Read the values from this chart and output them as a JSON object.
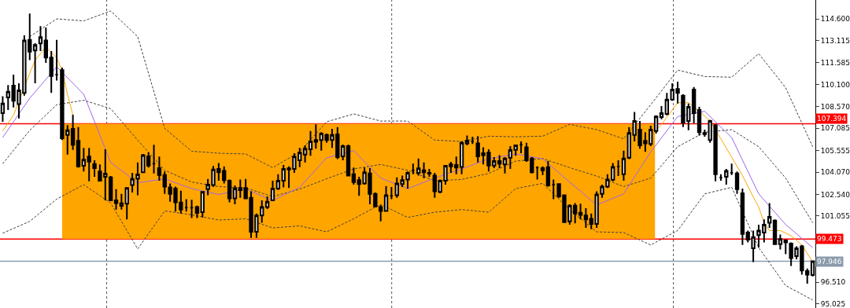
{
  "chart_data": {
    "type": "candlestick",
    "categories": [
      null,
      null,
      null,
      null,
      null,
      null,
      null,
      null,
      null,
      null,
      null,
      null,
      null,
      null,
      null,
      null,
      null,
      null,
      null,
      null,
      null,
      null,
      null,
      null,
      null,
      null,
      null,
      null,
      null,
      null,
      null,
      null,
      null,
      null,
      null,
      null,
      null,
      null,
      null,
      null,
      null,
      null,
      null,
      null,
      null,
      null,
      null,
      null,
      null,
      null,
      null,
      null,
      null,
      null,
      null,
      null,
      null,
      null,
      null,
      null,
      null,
      null,
      null,
      null,
      null,
      null,
      null,
      null,
      null,
      null,
      null,
      null,
      null,
      null,
      null,
      null,
      null,
      null,
      null,
      null,
      null,
      null,
      null,
      null,
      null,
      null,
      null,
      null,
      null,
      null,
      null,
      null,
      null,
      null,
      null,
      null,
      null,
      null,
      null,
      null,
      null,
      null,
      null,
      null,
      null,
      null,
      null,
      null,
      null,
      null,
      null,
      null,
      null,
      null,
      null,
      null,
      null,
      null,
      null,
      null,
      null,
      null,
      null,
      null,
      null,
      null,
      null,
      null,
      null,
      null,
      null,
      null,
      null,
      null,
      null,
      null,
      null,
      null,
      null,
      null,
      null,
      null,
      null,
      null,
      null,
      null,
      null,
      null,
      null,
      null,
      null
    ],
    "ohlc": [
      [
        108.12,
        109.28,
        107.53,
        108.79
      ],
      [
        109.2,
        110.05,
        108.34,
        109.6
      ],
      [
        110.01,
        110.77,
        108.52,
        108.97
      ],
      [
        108.74,
        110.18,
        107.76,
        109.69
      ],
      [
        109.51,
        113.47,
        109.33,
        113.11
      ],
      [
        113.16,
        114.96,
        111.76,
        112.34
      ],
      [
        112.43,
        112.93,
        110.18,
        112.8
      ],
      [
        112.91,
        114.1,
        112.39,
        113.34
      ],
      [
        113.11,
        114.01,
        111.58,
        111.94
      ],
      [
        111.94,
        112.39,
        109.51,
        110.68
      ],
      [
        110.77,
        113.16,
        110.36,
        110.77
      ],
      [
        111.08,
        111.26,
        106.27,
        106.4
      ],
      [
        106.63,
        107.3,
        105.28,
        106.95
      ],
      [
        107.04,
        108.02,
        105.6,
        105.95
      ],
      [
        106.22,
        107.17,
        104.38,
        104.47
      ],
      [
        104.51,
        105.73,
        104.11,
        104.92
      ],
      [
        105.14,
        105.73,
        103.44,
        104.79
      ],
      [
        104.63,
        104.88,
        103.75,
        104.34
      ],
      [
        104.11,
        104.6,
        103.44,
        103.48
      ],
      [
        103.75,
        105.64,
        102.13,
        103.97
      ],
      [
        103.71,
        103.8,
        102.08,
        102.13
      ],
      [
        102.13,
        102.9,
        101.5,
        101.95
      ],
      [
        101.75,
        102.58,
        101.5,
        101.93
      ],
      [
        101.9,
        102.99,
        100.82,
        102.99
      ],
      [
        103.19,
        104.02,
        102.67,
        103.61
      ],
      [
        103.62,
        104.74,
        102.49,
        103.91
      ],
      [
        104.06,
        105.32,
        104.02,
        105.24
      ],
      [
        105.15,
        105.42,
        104.38,
        104.52
      ],
      [
        104.65,
        105.95,
        103.98,
        104.65
      ],
      [
        104.34,
        105.14,
        103.48,
        103.88
      ],
      [
        103.88,
        104.11,
        102.58,
        103.08
      ],
      [
        103.03,
        103.3,
        102.04,
        102.58
      ],
      [
        102.94,
        103.08,
        101.36,
        102.0
      ],
      [
        101.99,
        102.8,
        101.23,
        101.5
      ],
      [
        101.64,
        102.22,
        101.36,
        101.64
      ],
      [
        101.64,
        102.18,
        100.92,
        101.64
      ],
      [
        101.68,
        101.77,
        100.92,
        101.27
      ],
      [
        101.32,
        102.71,
        100.96,
        102.71
      ],
      [
        102.9,
        103.61,
        102.49,
        103.21
      ],
      [
        103.19,
        104.49,
        103.07,
        104.25
      ],
      [
        104.29,
        104.7,
        103.48,
        104.06
      ],
      [
        104.16,
        104.47,
        103.3,
        103.52
      ],
      [
        103.48,
        103.57,
        102.0,
        102.27
      ],
      [
        102.27,
        103.16,
        101.86,
        102.94
      ],
      [
        102.83,
        103.57,
        102.31,
        102.98
      ],
      [
        102.98,
        103.61,
        102.22,
        102.27
      ],
      [
        102.31,
        102.76,
        99.56,
        99.97
      ],
      [
        99.97,
        101.23,
        99.56,
        101.1
      ],
      [
        101.1,
        102.13,
        100.6,
        101.68
      ],
      [
        101.68,
        102.4,
        101.54,
        102.04
      ],
      [
        102.13,
        103.48,
        102.08,
        102.94
      ],
      [
        102.94,
        103.93,
        102.85,
        103.48
      ],
      [
        103.48,
        104.56,
        103.03,
        104.29
      ],
      [
        104.25,
        104.47,
        102.98,
        104.33
      ],
      [
        104.29,
        105.37,
        104.02,
        105.14
      ],
      [
        104.88,
        105.73,
        104.42,
        105.41
      ],
      [
        105.28,
        105.91,
        104.74,
        105.68
      ],
      [
        105.64,
        106.9,
        105.19,
        106.18
      ],
      [
        106.27,
        107.35,
        105.68,
        106.16
      ],
      [
        106.27,
        106.81,
        105.55,
        106.72
      ],
      [
        106.63,
        106.72,
        106.09,
        106.27
      ],
      [
        106.27,
        107.04,
        105.73,
        106.63
      ],
      [
        106.67,
        107.17,
        104.96,
        105.1
      ],
      [
        105.15,
        105.96,
        104.88,
        105.86
      ],
      [
        105.86,
        105.96,
        103.8,
        103.84
      ],
      [
        103.93,
        104.38,
        103.21,
        103.39
      ],
      [
        103.52,
        103.75,
        102.44,
        103.25
      ],
      [
        103.3,
        104.38,
        103.21,
        104.06
      ],
      [
        103.98,
        104.34,
        101.86,
        102.58
      ],
      [
        102.58,
        102.67,
        101.68,
        101.72
      ],
      [
        101.68,
        101.81,
        100.69,
        101.41
      ],
      [
        101.41,
        103.12,
        101.36,
        102.49
      ],
      [
        102.45,
        103.05,
        102.22,
        102.45
      ],
      [
        102.49,
        103.71,
        102.31,
        103.3
      ],
      [
        103.26,
        103.84,
        103.05,
        103.52
      ],
      [
        103.57,
        104.11,
        102.94,
        104.02
      ],
      [
        104.2,
        104.65,
        103.93,
        104.2
      ],
      [
        104.02,
        105.01,
        103.84,
        104.33
      ],
      [
        104.2,
        104.74,
        103.66,
        104.06
      ],
      [
        104.02,
        104.29,
        103.75,
        103.97
      ],
      [
        103.84,
        104.02,
        102.31,
        102.76
      ],
      [
        102.72,
        103.57,
        102.62,
        103.48
      ],
      [
        103.48,
        104.56,
        103.21,
        104.51
      ],
      [
        104.47,
        104.78,
        104.02,
        104.61
      ],
      [
        104.56,
        105.14,
        103.93,
        104.38
      ],
      [
        104.43,
        106.18,
        103.93,
        106.09
      ],
      [
        106.04,
        106.58,
        105.91,
        106.22
      ],
      [
        106.18,
        106.5,
        106.0,
        106.18
      ],
      [
        106.04,
        106.54,
        104.74,
        105.15
      ],
      [
        105.24,
        105.78,
        104.6,
        105.37
      ],
      [
        105.41,
        105.64,
        104.11,
        104.52
      ],
      [
        104.52,
        105.1,
        104.34,
        104.83
      ],
      [
        104.83,
        105.24,
        104.34,
        104.65
      ],
      [
        104.6,
        105.1,
        103.98,
        105.01
      ],
      [
        105.06,
        105.86,
        104.29,
        105.59
      ],
      [
        105.6,
        105.96,
        105.19,
        105.91
      ],
      [
        105.95,
        106.18,
        105.37,
        105.95
      ],
      [
        105.78,
        106.09,
        104.78,
        104.88
      ],
      [
        105.01,
        105.1,
        103.98,
        104.06
      ],
      [
        104.38,
        104.47,
        103.57,
        104.38
      ],
      [
        104.2,
        104.47,
        103.88,
        104.34
      ],
      [
        104.42,
        104.83,
        103.08,
        103.16
      ],
      [
        103.21,
        103.57,
        102.22,
        103.21
      ],
      [
        103.25,
        103.3,
        102.31,
        102.4
      ],
      [
        102.49,
        102.49,
        100.6,
        100.64
      ],
      [
        100.69,
        101.86,
        100.46,
        101.77
      ],
      [
        101.77,
        101.95,
        100.56,
        101.23
      ],
      [
        101.28,
        101.9,
        100.82,
        101.14
      ],
      [
        101.1,
        101.59,
        100.24,
        100.82
      ],
      [
        100.87,
        101.23,
        100.15,
        100.51
      ],
      [
        100.51,
        102.76,
        100.24,
        102.54
      ],
      [
        102.58,
        103.21,
        102.31,
        103.08
      ],
      [
        103.08,
        103.93,
        102.98,
        103.57
      ],
      [
        103.55,
        104.7,
        103.44,
        104.43
      ],
      [
        104.45,
        104.88,
        103.8,
        104.45
      ],
      [
        103.93,
        105.55,
        103.48,
        105.01
      ],
      [
        105.06,
        107.17,
        104.96,
        106.76
      ],
      [
        106.63,
        108.2,
        106.18,
        107.58
      ],
      [
        106.99,
        107.58,
        105.68,
        105.91
      ],
      [
        106.22,
        106.81,
        105.46,
        106.04
      ],
      [
        106.0,
        107.26,
        105.86,
        106.99
      ],
      [
        106.9,
        107.98,
        106.72,
        107.89
      ],
      [
        107.85,
        108.61,
        107.71,
        108.12
      ],
      [
        108.07,
        109.51,
        107.98,
        109.06
      ],
      [
        109.06,
        110.18,
        108.97,
        109.74
      ],
      [
        109.78,
        110.28,
        108.79,
        109.51
      ],
      [
        109.33,
        109.42,
        107.17,
        107.48
      ],
      [
        107.58,
        108.79,
        106.95,
        108.56
      ],
      [
        109.74,
        109.92,
        107.44,
        108.12
      ],
      [
        108.34,
        108.56,
        106.58,
        106.81
      ],
      [
        106.76,
        106.99,
        106.5,
        106.68
      ],
      [
        106.27,
        107.66,
        106.09,
        107.58
      ],
      [
        107.3,
        107.35,
        103.44,
        103.93
      ],
      [
        103.7,
        103.93,
        103.48,
        103.7
      ],
      [
        103.75,
        104.29,
        103.21,
        104.16
      ],
      [
        104.02,
        104.65,
        103.88,
        104.02
      ],
      [
        103.98,
        104.11,
        102.58,
        102.9
      ],
      [
        102.62,
        102.94,
        99.07,
        99.83
      ],
      [
        99.92,
        100.06,
        99.25,
        99.43
      ],
      [
        98.84,
        100.06,
        97.9,
        99.61
      ],
      [
        99.74,
        100.46,
        98.89,
        100.06
      ],
      [
        99.92,
        100.82,
        99.25,
        100.46
      ],
      [
        100.6,
        101.95,
        100.24,
        101.0
      ],
      [
        100.74,
        100.82,
        99.07,
        99.12
      ],
      [
        99.12,
        99.79,
        98.76,
        99.48
      ],
      [
        99.38,
        99.43,
        98.44,
        99.25
      ],
      [
        99.16,
        99.25,
        97.63,
        98.17
      ],
      [
        98.3,
        98.98,
        98.08,
        98.84
      ],
      [
        98.98,
        99.07,
        97.04,
        97.32
      ],
      [
        97.27,
        97.45,
        96.41,
        97.04
      ],
      [
        97.0,
        97.99,
        96.91,
        97.95
      ]
    ],
    "series": [
      {
        "type": "line",
        "color": "#404040",
        "line_style": "dashed",
        "values": [
          null,
          null,
          null,
          null,
          null,
          113.38,
          null,
          null,
          null,
          null,
          114.6,
          null,
          null,
          null,
          null,
          114.46,
          null,
          null,
          null,
          null,
          115.14,
          null,
          null,
          null,
          null,
          113.38,
          null,
          null,
          null,
          null,
          107.08,
          null,
          null,
          null,
          null,
          105.51,
          null,
          null,
          null,
          null,
          105.37,
          null,
          null,
          null,
          null,
          105.32,
          null,
          null,
          null,
          null,
          104.38,
          null,
          null,
          null,
          null,
          105.46,
          null,
          null,
          null,
          null,
          107.53,
          null,
          null,
          null,
          null,
          108.07,
          null,
          null,
          null,
          null,
          107.58,
          null,
          null,
          null,
          null,
          107.58,
          null,
          null,
          null,
          null,
          106.27,
          null,
          null,
          null,
          null,
          106.18,
          null,
          null,
          null,
          null,
          106.54,
          null,
          null,
          null,
          null,
          106.5,
          null,
          null,
          null,
          null,
          106.54,
          null,
          null,
          null,
          null,
          107.35,
          null,
          null,
          null,
          null,
          106.99,
          null,
          null,
          null,
          null,
          106.36,
          null,
          null,
          null,
          null,
          108.7,
          null,
          null,
          null,
          null,
          111.08,
          null,
          null,
          null,
          null,
          110.64,
          null,
          null,
          null,
          null,
          110.59,
          null,
          null,
          null,
          null,
          112.21,
          null,
          null,
          null,
          null,
          109.87,
          null,
          null,
          null,
          null,
          105.82
        ]
      },
      {
        "type": "line",
        "color": "#404040",
        "line_style": "dashed",
        "values": [
          104.65,
          null,
          null,
          null,
          null,
          106.94,
          null,
          null,
          null,
          null,
          108.7,
          null,
          null,
          null,
          null,
          109.01,
          null,
          null,
          null,
          null,
          108.43,
          null,
          null,
          null,
          null,
          106.27,
          null,
          null,
          null,
          null,
          104.2,
          null,
          null,
          null,
          null,
          103.39,
          null,
          null,
          null,
          null,
          103.08,
          null,
          null,
          null,
          null,
          102.98,
          null,
          null,
          null,
          null,
          102.4,
          null,
          null,
          null,
          null,
          102.9,
          null,
          null,
          null,
          null,
          103.62,
          null,
          null,
          null,
          null,
          104.29,
          null,
          null,
          null,
          null,
          104.6,
          null,
          null,
          null,
          null,
          104.2,
          null,
          null,
          null,
          null,
          103.48,
          null,
          null,
          null,
          null,
          103.57,
          null,
          null,
          null,
          null,
          103.98,
          null,
          null,
          null,
          null,
          104.83,
          null,
          null,
          null,
          null,
          105.0,
          null,
          null,
          null,
          null,
          104.38,
          null,
          null,
          null,
          null,
          103.8,
          null,
          null,
          null,
          null,
          103.08,
          null,
          null,
          null,
          null,
          103.66,
          null,
          null,
          null,
          null,
          105.82,
          null,
          null,
          null,
          null,
          106.81,
          null,
          null,
          null,
          null,
          106.99,
          null,
          null,
          null,
          null,
          105.82,
          null,
          null,
          null,
          null,
          103.66,
          null,
          null,
          null,
          null,
          100.6
        ]
      },
      {
        "type": "line",
        "color": "#404040",
        "line_style": "dashed",
        "values": [
          99.88,
          null,
          null,
          null,
          null,
          100.69,
          null,
          null,
          null,
          null,
          102.22,
          null,
          null,
          null,
          null,
          103.21,
          null,
          null,
          null,
          null,
          101.95,
          null,
          null,
          null,
          null,
          98.8,
          null,
          null,
          null,
          null,
          101.41,
          null,
          null,
          null,
          null,
          101.14,
          null,
          null,
          null,
          null,
          100.78,
          null,
          null,
          null,
          null,
          100.87,
          null,
          null,
          null,
          null,
          100.24,
          null,
          null,
          null,
          null,
          100.38,
          null,
          null,
          null,
          null,
          99.97,
          null,
          null,
          null,
          null,
          100.87,
          null,
          null,
          null,
          null,
          101.86,
          null,
          null,
          null,
          null,
          100.96,
          null,
          null,
          null,
          null,
          101.32,
          null,
          null,
          null,
          null,
          101.5,
          null,
          null,
          null,
          null,
          101.32,
          null,
          null,
          null,
          null,
          102.94,
          null,
          null,
          null,
          null,
          103.3,
          null,
          null,
          null,
          null,
          101.5,
          null,
          null,
          null,
          null,
          99.97,
          null,
          null,
          null,
          null,
          99.92,
          null,
          null,
          null,
          null,
          99.07,
          null,
          null,
          null,
          null,
          100.06,
          null,
          null,
          null,
          null,
          102.58,
          null,
          null,
          null,
          null,
          103.03,
          null,
          null,
          null,
          null,
          98.89,
          null,
          null,
          null,
          null,
          96.28,
          null,
          null,
          null,
          null,
          95.29
        ]
      },
      {
        "type": "line",
        "color": "#a066e8",
        "line_style": "solid",
        "values": [
          106.45,
          null,
          null,
          null,
          null,
          109.15,
          null,
          null,
          null,
          null,
          111.31,
          null,
          null,
          null,
          null,
          109.42,
          null,
          null,
          null,
          null,
          104.74,
          null,
          null,
          null,
          null,
          103.34,
          null,
          null,
          null,
          null,
          103.61,
          null,
          null,
          null,
          null,
          102.94,
          null,
          null,
          null,
          null,
          102.54,
          null,
          null,
          null,
          null,
          102.9,
          null,
          null,
          null,
          null,
          102.13,
          null,
          null,
          null,
          null,
          103.03,
          null,
          null,
          null,
          null,
          105.06,
          null,
          null,
          null,
          null,
          105.55,
          null,
          null,
          null,
          null,
          103.66,
          null,
          null,
          null,
          null,
          102.94,
          null,
          null,
          null,
          null,
          103.66,
          null,
          null,
          null,
          null,
          104.29,
          null,
          null,
          null,
          null,
          104.99,
          null,
          null,
          null,
          null,
          105.32,
          null,
          null,
          null,
          null,
          104.99,
          null,
          null,
          null,
          null,
          103.39,
          null,
          null,
          null,
          null,
          101.82,
          null,
          null,
          null,
          null,
          102.58,
          null,
          null,
          null,
          null,
          105.46,
          null,
          null,
          null,
          null,
          107.89,
          null,
          null,
          null,
          null,
          108.25,
          null,
          null,
          null,
          null,
          106.45,
          null,
          null,
          null,
          null,
          102.58,
          null,
          null,
          null,
          null,
          100.47,
          null,
          null,
          null,
          null,
          98.89
        ]
      },
      {
        "type": "line",
        "color": "#ffa500",
        "line_style": "solid",
        "values": [
          106.9,
          null,
          107.98,
          null,
          null,
          110.86,
          111.76,
          null,
          112.66,
          null,
          111.94,
          111.04,
          109.42,
          107.98,
          null,
          null,
          null,
          null,
          null,
          null,
          null,
          null,
          null,
          null,
          null,
          null,
          null,
          null,
          null,
          null,
          null,
          null,
          null,
          null,
          null,
          null,
          null,
          null,
          null,
          null,
          null,
          null,
          null,
          null,
          null,
          null,
          null,
          null,
          null,
          null,
          null,
          null,
          null,
          null,
          null,
          null,
          null,
          null,
          null,
          null,
          null,
          null,
          null,
          null,
          null,
          null,
          null,
          null,
          null,
          null,
          null,
          null,
          null,
          null,
          null,
          null,
          null,
          null,
          null,
          null,
          null,
          null,
          null,
          null,
          null,
          null,
          null,
          null,
          null,
          null,
          null,
          null,
          null,
          null,
          null,
          null,
          null,
          null,
          null,
          null,
          null,
          null,
          null,
          null,
          null,
          null,
          null,
          null,
          null,
          null,
          null,
          null,
          null,
          null,
          null,
          null,
          null,
          null,
          null,
          null,
          null,
          null,
          null,
          null,
          null,
          null,
          null,
          null,
          null,
          null,
          null,
          null,
          null,
          null,
          null,
          null,
          null,
          null,
          null,
          null,
          null,
          null,
          null,
          null,
          null,
          null,
          null,
          null,
          null,
          null,
          null
        ]
      },
      {
        "type": "line",
        "color": "#ffa500",
        "line_style": "solid",
        "values": [
          null,
          null,
          null,
          null,
          null,
          null,
          null,
          null,
          null,
          null,
          null,
          null,
          null,
          null,
          null,
          null,
          null,
          null,
          null,
          null,
          null,
          null,
          null,
          null,
          null,
          null,
          null,
          null,
          null,
          null,
          null,
          null,
          null,
          null,
          null,
          null,
          null,
          null,
          null,
          null,
          null,
          null,
          null,
          null,
          null,
          null,
          null,
          null,
          null,
          null,
          null,
          null,
          null,
          null,
          null,
          null,
          null,
          null,
          null,
          null,
          null,
          null,
          null,
          null,
          null,
          null,
          null,
          null,
          null,
          null,
          null,
          null,
          null,
          null,
          null,
          null,
          null,
          null,
          null,
          null,
          null,
          null,
          null,
          null,
          null,
          null,
          null,
          null,
          null,
          null,
          null,
          null,
          null,
          null,
          null,
          null,
          null,
          null,
          null,
          null,
          null,
          null,
          null,
          null,
          null,
          null,
          null,
          null,
          null,
          null,
          null,
          null,
          null,
          null,
          null,
          null,
          null,
          null,
          null,
          null,
          null,
          106.99,
          107.35,
          null,
          108.34,
          108.84,
          null,
          108.84,
          null,
          108.25,
          null,
          107.58,
          null,
          106.36,
          null,
          105.1,
          null,
          103.84,
          null,
          102.36,
          101.68,
          100.6,
          100.06,
          null,
          100.06,
          null,
          99.7,
          null,
          99.07,
          null,
          97.9
        ]
      }
    ],
    "ylim": [
      94.74,
      115.895
    ],
    "yticks": [
      {
        "value": 114.6,
        "label": "114.600"
      },
      113.115,
      111.585,
      {
        "value": 110.1,
        "label": "110.100"
      },
      {
        "value": 108.57,
        "label": "108.570"
      },
      107.085,
      105.555,
      {
        "value": 104.07,
        "label": "104.070"
      },
      {
        "value": 102.54,
        "label": "102.540"
      },
      101.055,
      {
        "value": 96.51,
        "label": "96.510"
      },
      95.025
    ],
    "tick_labels": "y",
    "ref_lines": [
      {
        "axis": "y",
        "value": 107.394,
        "label": "107.394",
        "color": "#ff0000"
      },
      {
        "axis": "y",
        "value": 99.473,
        "label": "99.473",
        "color": "#ff0000"
      },
      {
        "axis": "y",
        "value": 97.946,
        "label": "97.946",
        "color": "#8a9bab"
      }
    ],
    "bands": [
      {
        "axis": "y",
        "from": 99.473,
        "to": 107.394,
        "color": "#ffa500"
      }
    ]
  }
}
